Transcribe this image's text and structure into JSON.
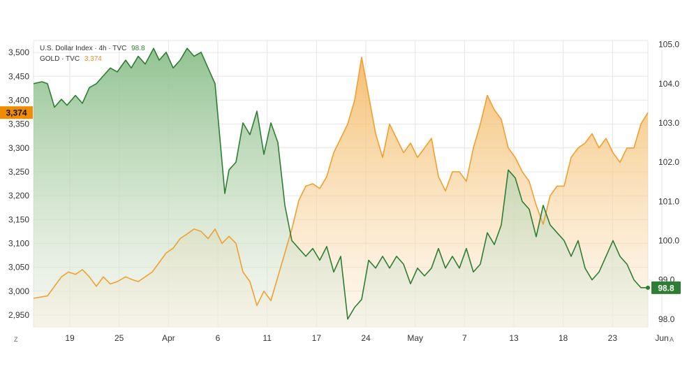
{
  "legend": {
    "dxy_label": "U.S. Dollar Index · 4h · TVC",
    "dxy_value": "98.8",
    "gold_label": "GOLD · TVC",
    "gold_value": "3,374"
  },
  "colors": {
    "dxy": "#2e7d32",
    "gold": "#f0a030",
    "dxy_fill_top": "#9ccb9c",
    "gold_fill_top": "#f6c27a",
    "grid": "#e6e6e6"
  },
  "corner_left": "Z",
  "corner_right": "A",
  "chart_data": {
    "type": "area",
    "x_ticks": [
      "19",
      "25",
      "Apr",
      "6",
      "11",
      "17",
      "24",
      "May",
      "7",
      "13",
      "18",
      "23",
      "Jun"
    ],
    "y_left": {
      "range": [
        2925,
        3525
      ],
      "ticks": [
        "3,500",
        "3,450",
        "3,400",
        "3,350",
        "3,300",
        "3,250",
        "3,200",
        "3,150",
        "3,100",
        "3,050",
        "3,000",
        "2,950"
      ],
      "current_label": "3,374"
    },
    "y_right": {
      "range": [
        97.8,
        105.1
      ],
      "ticks": [
        "105.0",
        "104.0",
        "103.0",
        "102.0",
        "101.0",
        "100.0",
        "99.0",
        "98.0"
      ],
      "current_label": "98.8"
    },
    "grid": true,
    "series": [
      {
        "name": "U.S. Dollar Index",
        "axis": "right",
        "values": [
          [
            0,
            104.0
          ],
          [
            0.6,
            104.05
          ],
          [
            1.0,
            104.0
          ],
          [
            1.5,
            103.4
          ],
          [
            2.0,
            103.6
          ],
          [
            2.4,
            103.45
          ],
          [
            3.0,
            103.7
          ],
          [
            3.5,
            103.5
          ],
          [
            4.0,
            103.9
          ],
          [
            4.5,
            104.0
          ],
          [
            5.0,
            104.2
          ],
          [
            5.5,
            104.4
          ],
          [
            6.0,
            104.3
          ],
          [
            6.6,
            104.6
          ],
          [
            7.0,
            104.4
          ],
          [
            7.5,
            104.7
          ],
          [
            8.0,
            104.5
          ],
          [
            8.6,
            104.9
          ],
          [
            9.0,
            104.6
          ],
          [
            9.5,
            104.8
          ],
          [
            10.0,
            104.4
          ],
          [
            10.5,
            104.6
          ],
          [
            11.0,
            104.9
          ],
          [
            11.5,
            104.7
          ],
          [
            12.0,
            104.8
          ],
          [
            12.5,
            104.4
          ],
          [
            13.0,
            104.0
          ],
          [
            13.4,
            102.4
          ],
          [
            13.7,
            101.2
          ],
          [
            14.0,
            101.8
          ],
          [
            14.5,
            102.0
          ],
          [
            15.0,
            103.0
          ],
          [
            15.5,
            102.7
          ],
          [
            16.0,
            103.3
          ],
          [
            16.5,
            102.2
          ],
          [
            17.0,
            103.0
          ],
          [
            17.5,
            102.5
          ],
          [
            18.0,
            100.9
          ],
          [
            18.5,
            100.0
          ],
          [
            19.0,
            99.8
          ],
          [
            19.5,
            99.6
          ],
          [
            20.0,
            99.8
          ],
          [
            20.5,
            99.5
          ],
          [
            21.0,
            99.85
          ],
          [
            21.5,
            99.2
          ],
          [
            22.0,
            99.6
          ],
          [
            22.5,
            98.0
          ],
          [
            23.0,
            98.3
          ],
          [
            23.5,
            98.5
          ],
          [
            24.0,
            99.5
          ],
          [
            24.5,
            99.3
          ],
          [
            25.0,
            99.6
          ],
          [
            25.5,
            99.3
          ],
          [
            26.0,
            99.6
          ],
          [
            26.5,
            99.4
          ],
          [
            27.0,
            98.9
          ],
          [
            27.5,
            99.3
          ],
          [
            28.0,
            99.1
          ],
          [
            28.5,
            99.3
          ],
          [
            29.0,
            99.8
          ],
          [
            29.5,
            99.3
          ],
          [
            30.0,
            99.6
          ],
          [
            30.5,
            99.3
          ],
          [
            31.0,
            99.8
          ],
          [
            31.5,
            99.2
          ],
          [
            32.0,
            99.4
          ],
          [
            32.5,
            100.2
          ],
          [
            33.0,
            99.9
          ],
          [
            33.5,
            100.4
          ],
          [
            34.0,
            101.8
          ],
          [
            34.5,
            101.6
          ],
          [
            35.0,
            101.0
          ],
          [
            35.5,
            100.8
          ],
          [
            36.0,
            100.1
          ],
          [
            36.5,
            100.9
          ],
          [
            37.0,
            100.4
          ],
          [
            37.5,
            100.2
          ],
          [
            38.0,
            100.0
          ],
          [
            38.5,
            99.6
          ],
          [
            39.0,
            100.0
          ],
          [
            39.5,
            99.3
          ],
          [
            40.0,
            99.0
          ],
          [
            40.5,
            99.2
          ],
          [
            41.0,
            99.6
          ],
          [
            41.5,
            100.0
          ],
          [
            42.0,
            99.6
          ],
          [
            42.5,
            99.4
          ],
          [
            43.0,
            99.0
          ],
          [
            43.5,
            98.8
          ],
          [
            44.0,
            98.8
          ]
        ]
      },
      {
        "name": "GOLD",
        "axis": "left",
        "values": [
          [
            0,
            2985
          ],
          [
            1.0,
            2990
          ],
          [
            1.5,
            3010
          ],
          [
            2.0,
            3030
          ],
          [
            2.5,
            3040
          ],
          [
            3.0,
            3035
          ],
          [
            3.5,
            3045
          ],
          [
            4.0,
            3030
          ],
          [
            4.5,
            3010
          ],
          [
            5.0,
            3030
          ],
          [
            5.5,
            3015
          ],
          [
            6.0,
            3020
          ],
          [
            6.6,
            3030
          ],
          [
            7.0,
            3025
          ],
          [
            7.5,
            3020
          ],
          [
            8.0,
            3030
          ],
          [
            8.5,
            3040
          ],
          [
            9.0,
            3060
          ],
          [
            9.5,
            3080
          ],
          [
            10.0,
            3090
          ],
          [
            10.5,
            3110
          ],
          [
            11.0,
            3120
          ],
          [
            11.5,
            3130
          ],
          [
            12.0,
            3125
          ],
          [
            12.5,
            3110
          ],
          [
            13.0,
            3130
          ],
          [
            13.5,
            3100
          ],
          [
            14.0,
            3115
          ],
          [
            14.5,
            3100
          ],
          [
            15.0,
            3040
          ],
          [
            15.5,
            3020
          ],
          [
            16.0,
            2970
          ],
          [
            16.5,
            3000
          ],
          [
            17.0,
            2980
          ],
          [
            17.5,
            3030
          ],
          [
            18.0,
            3080
          ],
          [
            18.5,
            3130
          ],
          [
            19.0,
            3190
          ],
          [
            19.5,
            3220
          ],
          [
            20.0,
            3225
          ],
          [
            20.5,
            3215
          ],
          [
            21.0,
            3240
          ],
          [
            21.5,
            3290
          ],
          [
            22.0,
            3320
          ],
          [
            22.5,
            3350
          ],
          [
            23.0,
            3400
          ],
          [
            23.5,
            3490
          ],
          [
            24.0,
            3410
          ],
          [
            24.5,
            3330
          ],
          [
            25.0,
            3280
          ],
          [
            25.5,
            3350
          ],
          [
            26.0,
            3320
          ],
          [
            26.5,
            3290
          ],
          [
            27.0,
            3310
          ],
          [
            27.5,
            3280
          ],
          [
            28.0,
            3300
          ],
          [
            28.5,
            3320
          ],
          [
            29.0,
            3240
          ],
          [
            29.5,
            3210
          ],
          [
            30.0,
            3250
          ],
          [
            30.5,
            3250
          ],
          [
            31.0,
            3230
          ],
          [
            31.5,
            3300
          ],
          [
            32.0,
            3350
          ],
          [
            32.5,
            3410
          ],
          [
            33.0,
            3380
          ],
          [
            33.5,
            3360
          ],
          [
            34.0,
            3300
          ],
          [
            34.5,
            3280
          ],
          [
            35.0,
            3250
          ],
          [
            35.5,
            3230
          ],
          [
            36.0,
            3180
          ],
          [
            36.5,
            3140
          ],
          [
            37.0,
            3200
          ],
          [
            37.5,
            3220
          ],
          [
            38.0,
            3220
          ],
          [
            38.5,
            3280
          ],
          [
            39.0,
            3300
          ],
          [
            39.5,
            3310
          ],
          [
            40.0,
            3330
          ],
          [
            40.5,
            3300
          ],
          [
            41.0,
            3320
          ],
          [
            41.5,
            3290
          ],
          [
            42.0,
            3270
          ],
          [
            42.5,
            3300
          ],
          [
            43.0,
            3300
          ],
          [
            43.5,
            3350
          ],
          [
            44.0,
            3374
          ]
        ]
      }
    ]
  }
}
